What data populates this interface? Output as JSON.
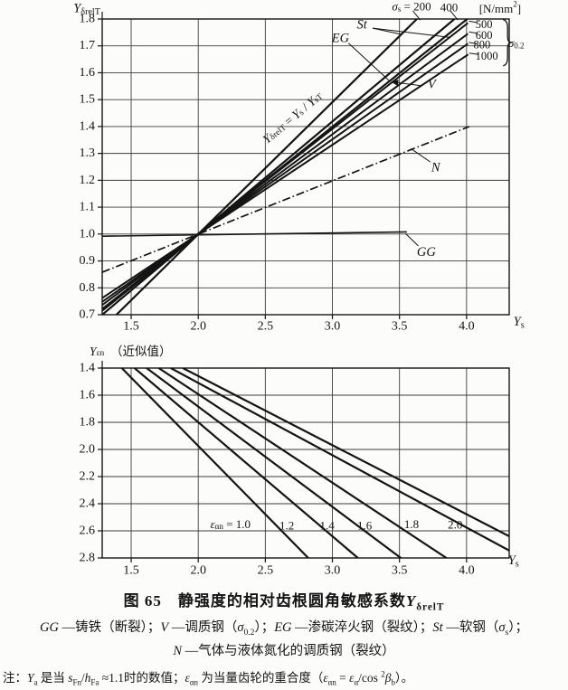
{
  "page": {
    "background": "#fcfcfa",
    "ink": "#141414"
  },
  "figure": {
    "caption": [
      {
        "t": "图 65　静强度的相对齿根圆角敏感系数"
      },
      {
        "t": "Y",
        "it": 1
      },
      {
        "t": "δrelT",
        "sub": 1
      }
    ],
    "legend_line1": [
      {
        "t": "GG",
        "it": 1
      },
      {
        "t": " —铸铁（断裂）；"
      },
      {
        "t": "V",
        "it": 1
      },
      {
        "t": " —调质钢（"
      },
      {
        "t": "σ",
        "it": 1
      },
      {
        "t": "0.2",
        "sub": 1
      },
      {
        "t": "）；"
      },
      {
        "t": "EG",
        "it": 1
      },
      {
        "t": " —渗碳淬火钢（裂纹）；"
      },
      {
        "t": "St",
        "it": 1
      },
      {
        "t": " —软钢（"
      },
      {
        "t": "σ",
        "it": 1
      },
      {
        "t": "s",
        "sub": 1
      },
      {
        "t": "）；"
      }
    ],
    "legend_line2": [
      {
        "t": "N",
        "it": 1
      },
      {
        "t": " —气体与液体氮化的调质钢（裂纹）"
      }
    ],
    "note": [
      {
        "t": "注："
      },
      {
        "t": "Y",
        "it": 1
      },
      {
        "t": "a",
        "sub": 1
      },
      {
        "t": " 是当 "
      },
      {
        "t": "s",
        "it": 1
      },
      {
        "t": "Fn",
        "sub": 1
      },
      {
        "t": "/"
      },
      {
        "t": "h",
        "it": 1
      },
      {
        "t": "Fa",
        "sub": 1
      },
      {
        "t": " ≈1.1时的数值；"
      },
      {
        "t": "ε",
        "it": 1
      },
      {
        "t": "αn",
        "sub": 1
      },
      {
        "t": " 为当量齿轮的重合度（"
      },
      {
        "t": "ε",
        "it": 1
      },
      {
        "t": "αn",
        "sub": 1
      },
      {
        "t": " = "
      },
      {
        "t": "ε",
        "it": 1
      },
      {
        "t": "α",
        "sub": 1
      },
      {
        "t": "/cos "
      },
      {
        "t": "2",
        "sup": 1
      },
      {
        "t": "β",
        "it": 1
      },
      {
        "t": "b",
        "sub": 1
      },
      {
        "t": "）。"
      }
    ]
  },
  "chart_data": [
    {
      "type": "line",
      "title": "静强度的相对齿根圆角敏感系数 Y_δrelT",
      "xlabel": "Y_s",
      "ylabel": "Y_δrelT",
      "xlim": [
        1.284,
        4.318
      ],
      "ylim": [
        1.8,
        0.7
      ],
      "x_ticks": [
        "1.5",
        "2.0",
        "2.5",
        "3.0",
        "3.5",
        "4.0"
      ],
      "y_ticks": [
        "1.8",
        "1.7",
        "1.6",
        "1.5",
        "1.4",
        "1.3",
        "1.2",
        "1.1",
        "1.0",
        "0.9",
        "0.8",
        "0.7"
      ],
      "grid": "on",
      "fan_center": [
        2.0,
        1.0
      ],
      "series": [
        {
          "name": "St σs=200",
          "width": 2.2,
          "points": [
            [
              1.39,
              0.7
            ],
            [
              3.63,
              1.8
            ]
          ]
        },
        {
          "name": "St σs=400",
          "width": 2.2,
          "points": [
            [
              1.284,
              0.7
            ],
            [
              3.91,
              1.8
            ]
          ]
        },
        {
          "name": "EG",
          "width": 2.2,
          "points": [
            [
              1.284,
              0.715
            ],
            [
              4.005,
              1.8
            ]
          ]
        },
        {
          "name": "V σ0.2=500",
          "width": 2.0,
          "points": [
            [
              1.284,
              0.722
            ],
            [
              4.01,
              1.785
            ]
          ]
        },
        {
          "name": "V σ0.2=600",
          "width": 2.0,
          "points": [
            [
              1.284,
              0.736
            ],
            [
              4.01,
              1.745
            ]
          ]
        },
        {
          "name": "V σ0.2=800",
          "width": 2.0,
          "points": [
            [
              1.284,
              0.748
            ],
            [
              4.01,
              1.708
            ]
          ]
        },
        {
          "name": "V σ0.2=1000",
          "width": 2.0,
          "points": [
            [
              1.284,
              0.762
            ],
            [
              4.012,
              1.668
            ]
          ]
        },
        {
          "name": "N",
          "dash": "9 3 1.5 3",
          "width": 1.7,
          "points": [
            [
              1.284,
              0.858
            ],
            [
              4.02,
              1.4
            ]
          ]
        },
        {
          "name": "GG",
          "width": 1.6,
          "points": [
            [
              1.284,
              0.992
            ],
            [
              3.555,
              1.008
            ]
          ]
        }
      ],
      "labels": [
        {
          "x": 3.59,
          "y": 1.848,
          "size": 13,
          "parts": [
            {
              "t": "σ",
              "it": 1
            },
            {
              "t": "s",
              "sub": 1
            },
            {
              "t": " = 200"
            }
          ]
        },
        {
          "x": 3.87,
          "y": 1.845,
          "size": 13,
          "parts": [
            {
              "t": "400"
            }
          ]
        },
        {
          "x": 4.25,
          "y": 1.84,
          "size": 13,
          "parts": [
            {
              "t": "[N/mm"
            },
            {
              "t": "2",
              "sup": 1
            },
            {
              "t": "]"
            }
          ]
        },
        {
          "x": 3.22,
          "y": 1.778,
          "size": 14.5,
          "parts": [
            {
              "t": "St",
              "it": 1
            }
          ]
        },
        {
          "x": 3.06,
          "y": 1.728,
          "size": 14.5,
          "parts": [
            {
              "t": "EG",
              "it": 1
            }
          ]
        },
        {
          "x": 4.13,
          "y": 1.78,
          "size": 12.5,
          "parts": [
            {
              "t": "500"
            }
          ]
        },
        {
          "x": 4.13,
          "y": 1.74,
          "size": 12.5,
          "parts": [
            {
              "t": "600"
            }
          ]
        },
        {
          "x": 4.115,
          "y": 1.704,
          "size": 12.5,
          "parts": [
            {
              "t": "800"
            }
          ]
        },
        {
          "x": 4.15,
          "y": 1.662,
          "size": 12.5,
          "parts": [
            {
              "t": "1000"
            }
          ]
        },
        {
          "x": 4.37,
          "y": 1.712,
          "size": 13,
          "parts": [
            {
              "t": "σ",
              "it": 1
            },
            {
              "t": "0.2",
              "sub": 1
            }
          ]
        },
        {
          "x": 3.74,
          "y": 1.556,
          "size": 14.5,
          "parts": [
            {
              "t": "V",
              "it": 1
            }
          ]
        },
        {
          "x": 3.77,
          "y": 1.246,
          "size": 14.5,
          "parts": [
            {
              "t": "N",
              "it": 1
            }
          ]
        },
        {
          "x": 3.7,
          "y": 0.932,
          "size": 14.5,
          "parts": [
            {
              "t": "GG",
              "it": 1
            }
          ]
        },
        {
          "x": 2.7,
          "y": 1.435,
          "rot": -40,
          "size": 13.5,
          "parts": [
            {
              "t": "Y",
              "it": 1
            },
            {
              "t": "δrelT",
              "sub": 1
            },
            {
              "t": " = "
            },
            {
              "t": "Y",
              "it": 1
            },
            {
              "t": "s",
              "sub": 1
            },
            {
              "t": " / "
            },
            {
              "t": "Y",
              "it": 1
            },
            {
              "t": "sT",
              "sub": 1
            }
          ]
        },
        {
          "x": 1.17,
          "y": 1.838,
          "size": 14.5,
          "parts": [
            {
              "t": "Y",
              "it": 1
            },
            {
              "t": "δrelT",
              "sub": 1
            }
          ]
        },
        {
          "x": 4.39,
          "y": 0.673,
          "size": 14.5,
          "parts": [
            {
              "t": "Y",
              "it": 1
            },
            {
              "t": "s",
              "sub": 1
            }
          ]
        }
      ],
      "leaders": [
        {
          "p": [
            3.3,
            1.766,
            3.52,
            1.742
          ]
        },
        {
          "p": [
            3.3,
            1.766,
            3.87,
            1.732
          ]
        },
        {
          "p": [
            3.12,
            1.71,
            3.42,
            1.572
          ]
        },
        {
          "p": [
            3.66,
            1.552,
            3.44,
            1.566
          ],
          "arrow": 1
        },
        {
          "p": [
            3.73,
            1.268,
            3.585,
            1.318
          ]
        },
        {
          "p": [
            3.64,
            0.956,
            3.545,
            1.002
          ]
        },
        {
          "p": [
            3.6,
            1.83,
            3.655,
            1.796
          ]
        },
        {
          "p": [
            3.88,
            1.83,
            3.935,
            1.796
          ]
        },
        {
          "p": [
            4.085,
            1.786,
            4.018,
            1.792
          ]
        },
        {
          "p": [
            4.085,
            1.746,
            4.018,
            1.752
          ]
        },
        {
          "p": [
            4.075,
            1.708,
            4.018,
            1.713
          ]
        },
        {
          "p": [
            4.09,
            1.668,
            4.02,
            1.673
          ]
        }
      ],
      "brace": {
        "x": 4.272,
        "y1": 1.798,
        "y2": 1.626
      }
    },
    {
      "type": "line",
      "title": "Y_εn（近似值）辅助图",
      "xlabel": "Y_s",
      "ylabel": "Y_εn（近似值）",
      "xlim": [
        1.284,
        4.318
      ],
      "ylim": [
        1.4,
        2.8
      ],
      "x_ticks": [
        "1.5",
        "2.0",
        "2.5",
        "3.0",
        "3.5",
        "4.0"
      ],
      "y_ticks": [
        "1.4",
        "1.6",
        "1.8",
        "2.0",
        "2.2",
        "2.4",
        "2.6",
        "2.8"
      ],
      "grid": "on",
      "series": [
        {
          "name": "εαn=1.0",
          "width": 2.2,
          "points": [
            [
              1.43,
              1.4
            ],
            [
              2.82,
              2.8
            ]
          ]
        },
        {
          "name": "εαn=1.2",
          "width": 2.2,
          "points": [
            [
              1.525,
              1.4
            ],
            [
              3.19,
              2.8
            ]
          ]
        },
        {
          "name": "εαn=1.4",
          "width": 2.2,
          "points": [
            [
              1.615,
              1.4
            ],
            [
              3.51,
              2.8
            ]
          ]
        },
        {
          "name": "εαn=1.6",
          "width": 2.2,
          "points": [
            [
              1.705,
              1.4
            ],
            [
              3.85,
              2.8
            ]
          ]
        },
        {
          "name": "εαn=1.8",
          "width": 2.2,
          "points": [
            [
              1.795,
              1.4
            ],
            [
              4.318,
              2.745
            ]
          ]
        },
        {
          "name": "εαn=2.0",
          "width": 2.2,
          "points": [
            [
              1.885,
              1.4
            ],
            [
              4.318,
              2.64
            ]
          ]
        }
      ],
      "labels": [
        {
          "x": 2.24,
          "y": 2.545,
          "size": 13,
          "parts": [
            {
              "t": "ε",
              "it": 1
            },
            {
              "t": "αn",
              "sub": 1
            },
            {
              "t": " = 1.0"
            }
          ]
        },
        {
          "x": 2.66,
          "y": 2.555,
          "size": 13,
          "parts": [
            {
              "t": "1.2"
            }
          ]
        },
        {
          "x": 2.96,
          "y": 2.555,
          "size": 13,
          "parts": [
            {
              "t": "1.4"
            }
          ]
        },
        {
          "x": 3.24,
          "y": 2.555,
          "size": 13,
          "parts": [
            {
              "t": "1.6"
            }
          ]
        },
        {
          "x": 3.59,
          "y": 2.545,
          "size": 13,
          "parts": [
            {
              "t": "1.8"
            }
          ]
        },
        {
          "x": 3.915,
          "y": 2.55,
          "size": 13,
          "parts": [
            {
              "t": "2.0"
            }
          ]
        },
        {
          "x": 1.19,
          "y": 1.272,
          "anchor": "start",
          "size": 13.5,
          "parts": [
            {
              "t": "Y",
              "it": 1
            },
            {
              "t": "εn",
              "sub": 1
            },
            {
              "t": "　（近似值）"
            }
          ]
        },
        {
          "x": 4.35,
          "y": 2.82,
          "size": 14.5,
          "parts": [
            {
              "t": "Y",
              "it": 1
            },
            {
              "t": "s",
              "sub": 1
            }
          ]
        }
      ],
      "leaders": []
    }
  ]
}
